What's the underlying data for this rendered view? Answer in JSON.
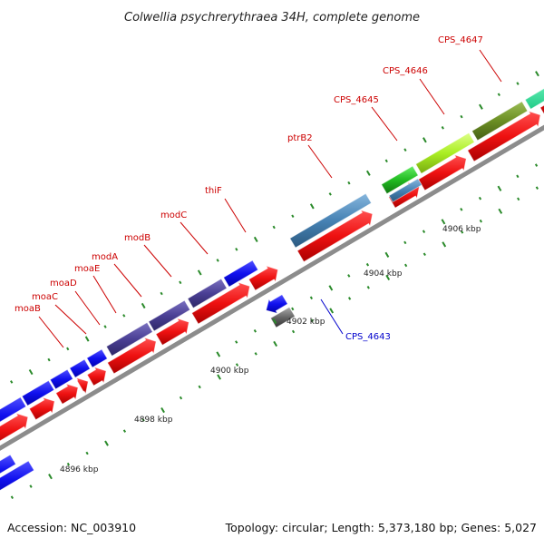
{
  "title": "Colwellia psychrerythraea 34H, complete genome",
  "footer": {
    "accession": "Accession: NC_003910",
    "summary": "Topology: circular; Length: 5,373,180 bp; Genes: 5,027"
  },
  "scale_labels": [
    "4896 kbp",
    "4898 kbp",
    "4900 kbp",
    "4902 kbp",
    "4904 kbp",
    "4906 kbp"
  ],
  "gene_labels": [
    {
      "text": "moaB",
      "color": "#cc0000"
    },
    {
      "text": "moaC",
      "color": "#cc0000"
    },
    {
      "text": "moaD",
      "color": "#cc0000"
    },
    {
      "text": "moaE",
      "color": "#cc0000"
    },
    {
      "text": "modA",
      "color": "#cc0000"
    },
    {
      "text": "modB",
      "color": "#cc0000"
    },
    {
      "text": "modC",
      "color": "#cc0000"
    },
    {
      "text": "thiF",
      "color": "#cc0000"
    },
    {
      "text": "ptrB2",
      "color": "#cc0000"
    },
    {
      "text": "CPS_4645",
      "color": "#cc0000"
    },
    {
      "text": "CPS_4646",
      "color": "#cc0000"
    },
    {
      "text": "CPS_4647",
      "color": "#cc0000"
    },
    {
      "text": "CPS_4643",
      "color": "#0000cc"
    }
  ],
  "colors": {
    "backbone": "#8c8c8c",
    "cds_forward": "#ee1111",
    "cds_reverse": "#cc0000",
    "cog_blue": "#1010ee",
    "cog_purple": "#4a3f94",
    "cog_steel": "#4682b4",
    "cog_green": "#22bb22",
    "cog_lime": "#aaee22",
    "cog_olive": "#6b8e23",
    "cog_gray": "#666666",
    "tick": "#2a8a2a"
  }
}
